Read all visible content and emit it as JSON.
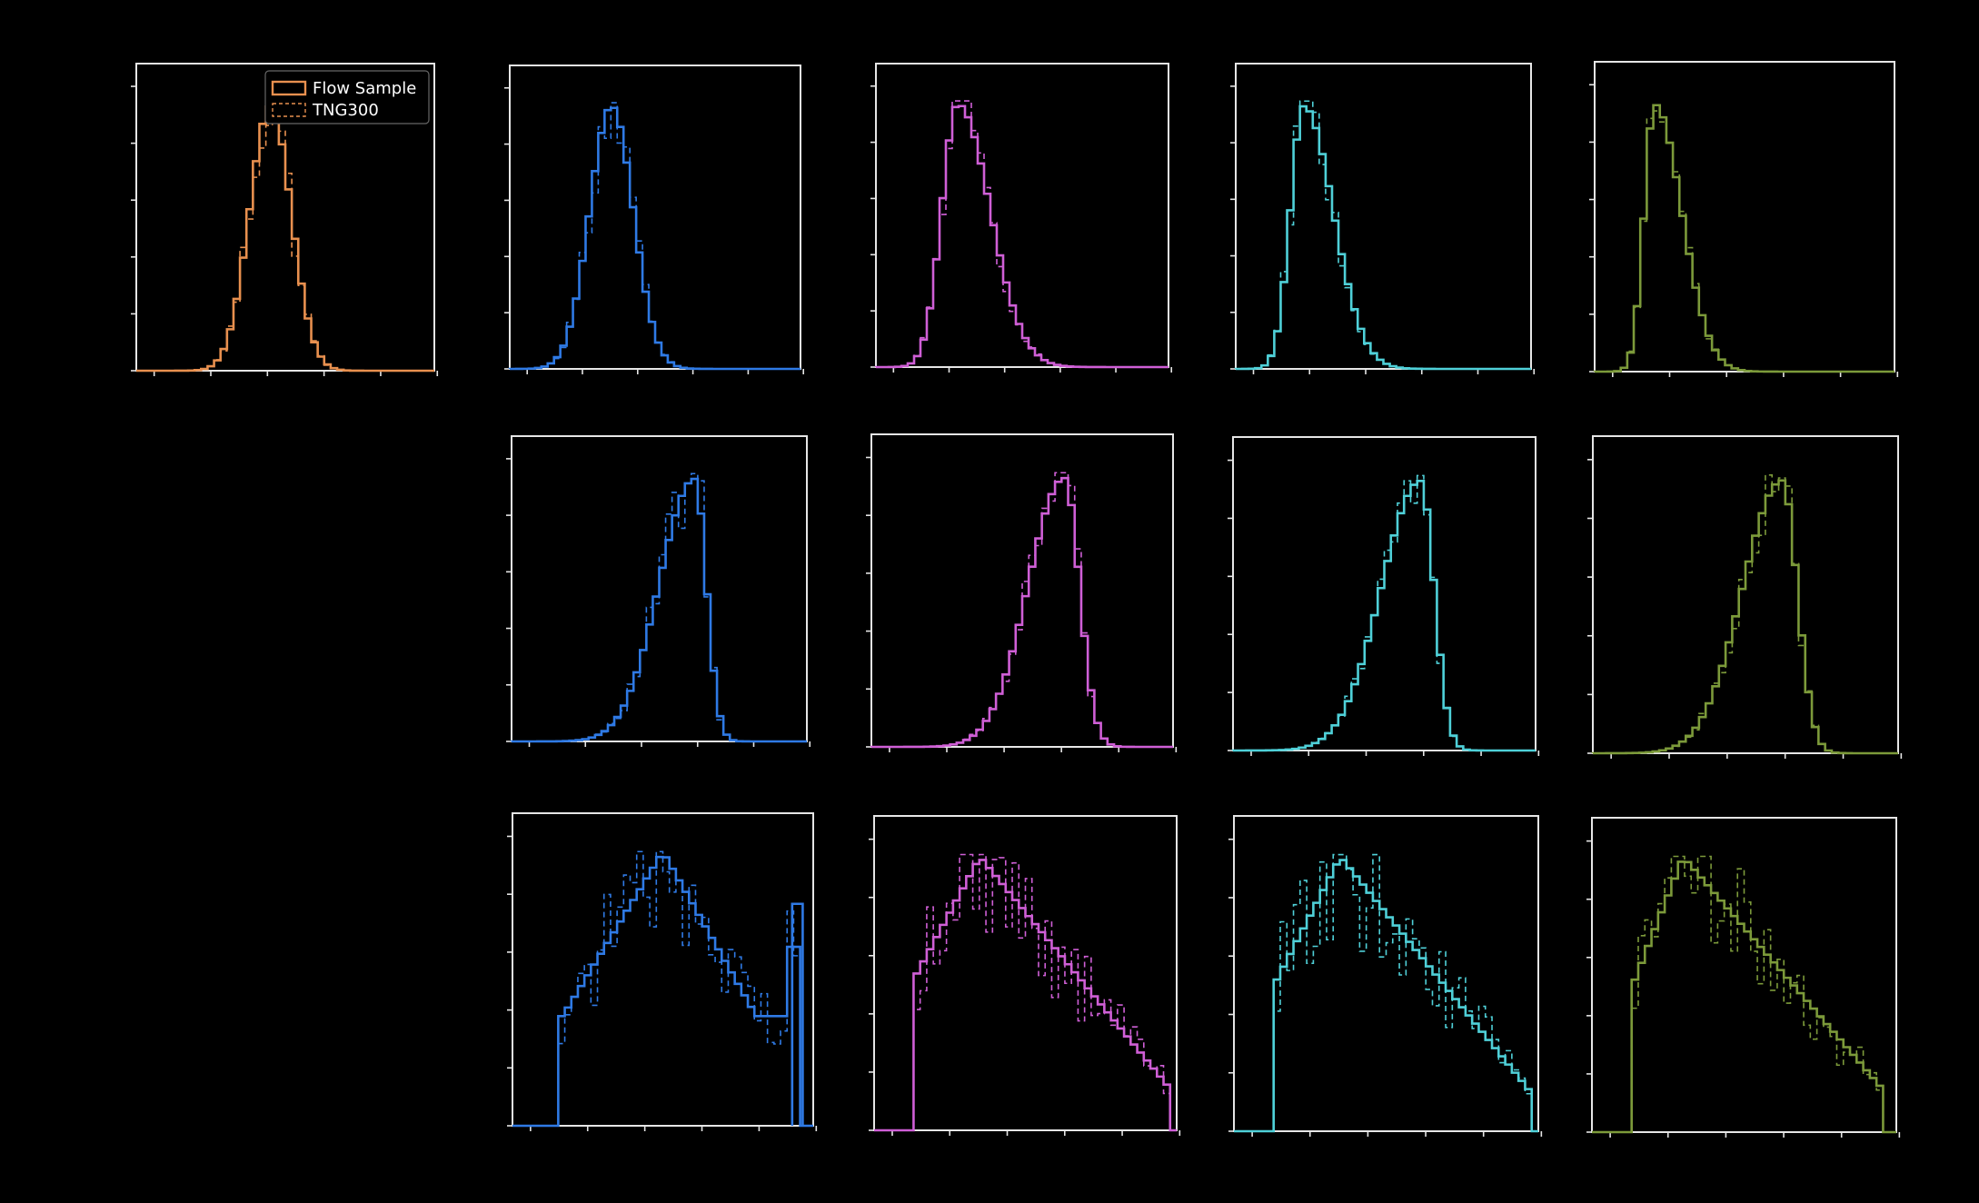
{
  "colors": {
    "background": "#000000",
    "axes": "#e6e6e6",
    "orange": "#e8904f",
    "blue": "#2f7ae5",
    "magenta": "#cf5fd6",
    "cyan": "#4fd0d8",
    "olive": "#7c9a3a"
  },
  "legend": {
    "entries": [
      "Flow Sample",
      "TNG300"
    ],
    "location": "upper right of first panel"
  },
  "chart_data": [
    {
      "id": "r0c0",
      "type": "step-histogram",
      "color": "orange",
      "shape": "normal",
      "center": 0.45,
      "width": 0.07,
      "noise": 0.15,
      "legend": true
    },
    {
      "id": "r0c1",
      "type": "step-histogram",
      "color": "blue",
      "shape": "normal",
      "center": 0.35,
      "width": 0.075,
      "noise": 0.12
    },
    {
      "id": "r0c2",
      "type": "step-histogram",
      "color": "magenta",
      "shape": "skew",
      "center": 0.28,
      "width": 0.055,
      "tail": 0.11,
      "noise": 0.12
    },
    {
      "id": "r0c3",
      "type": "step-histogram",
      "color": "cyan",
      "shape": "skew",
      "center": 0.23,
      "width": 0.045,
      "tail": 0.1,
      "noise": 0.12
    },
    {
      "id": "r0c4",
      "type": "step-histogram",
      "color": "olive",
      "shape": "skew",
      "center": 0.2,
      "width": 0.035,
      "tail": 0.09,
      "noise": 0.1
    },
    {
      "id": "r1c1",
      "type": "step-histogram",
      "color": "blue",
      "shape": "leftskew",
      "center": 0.62,
      "width": 0.04,
      "tail": 0.12,
      "noise": 0.15
    },
    {
      "id": "r1c2",
      "type": "step-histogram",
      "color": "magenta",
      "shape": "leftskew",
      "center": 0.64,
      "width": 0.05,
      "tail": 0.12,
      "noise": 0.12
    },
    {
      "id": "r1c3",
      "type": "step-histogram",
      "color": "cyan",
      "shape": "leftskew",
      "center": 0.62,
      "width": 0.045,
      "tail": 0.13,
      "noise": 0.1
    },
    {
      "id": "r1c4",
      "type": "step-histogram",
      "color": "olive",
      "shape": "leftskew",
      "center": 0.62,
      "width": 0.05,
      "tail": 0.13,
      "noise": 0.1
    },
    {
      "id": "r2c1",
      "type": "step-histogram",
      "color": "blue",
      "shape": "broad_blue",
      "noise": 0.28
    },
    {
      "id": "r2c2",
      "type": "step-histogram",
      "color": "magenta",
      "shape": "broad",
      "start": 0.13,
      "peak": 0.35,
      "end": 0.98,
      "noise": 0.28
    },
    {
      "id": "r2c3",
      "type": "step-histogram",
      "color": "cyan",
      "shape": "broad",
      "start": 0.14,
      "peak": 0.35,
      "end": 0.97,
      "noise": 0.28
    },
    {
      "id": "r2c4",
      "type": "step-histogram",
      "color": "olive",
      "shape": "broad",
      "start": 0.14,
      "peak": 0.3,
      "end": 0.96,
      "noise": 0.28
    }
  ]
}
